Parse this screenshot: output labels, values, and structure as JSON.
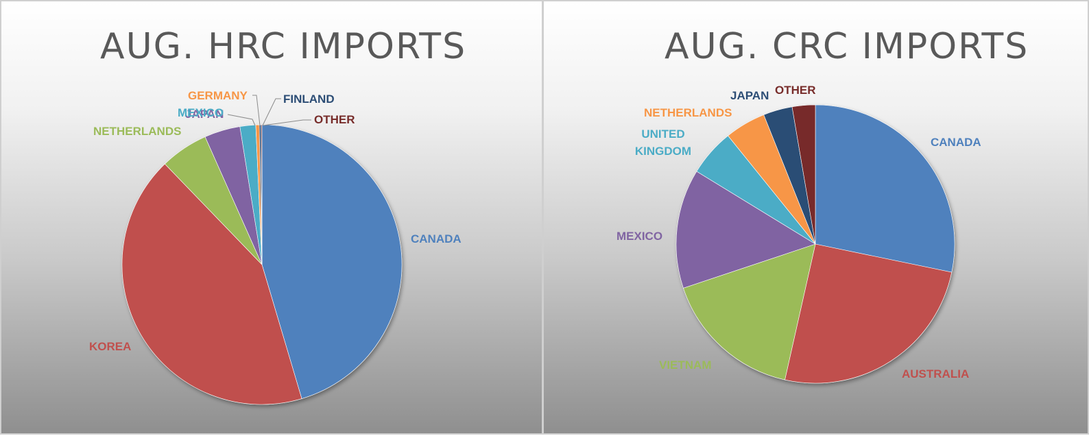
{
  "chart_data": [
    {
      "type": "pie",
      "title": "AUG. HRC IMPORTS",
      "slices": [
        {
          "label": "CANADA",
          "value": 45.0,
          "color": "#4F81BD"
        },
        {
          "label": "KOREA",
          "value": 42.0,
          "color": "#C0504D"
        },
        {
          "label": "NETHERLANDS",
          "value": 5.5,
          "color": "#9BBB59"
        },
        {
          "label": "JAPAN",
          "value": 4.1,
          "color": "#8064A2"
        },
        {
          "label": "MEXICO",
          "value": 1.8,
          "color": "#4BACC6"
        },
        {
          "label": "GERMANY",
          "value": 0.4,
          "color": "#F79646"
        },
        {
          "label": "FINLAND",
          "value": 0.2,
          "color": "#2C4D75"
        },
        {
          "label": "OTHER",
          "value": 0.1,
          "color": "#772C2A"
        }
      ]
    },
    {
      "type": "pie",
      "title": "AUG. CRC IMPORTS",
      "slices": [
        {
          "label": "CANADA",
          "value": 28.5,
          "color": "#4F81BD"
        },
        {
          "label": "AUSTRALIA",
          "value": 25.5,
          "color": "#C0504D"
        },
        {
          "label": "VIETNAM",
          "value": 16.5,
          "color": "#9BBB59"
        },
        {
          "label": "MEXICO",
          "value": 14.0,
          "color": "#8064A2"
        },
        {
          "label": "UNITED KINGDOM",
          "value": 5.5,
          "color": "#4BACC6"
        },
        {
          "label": "NETHERLANDS",
          "value": 4.8,
          "color": "#F79646"
        },
        {
          "label": "JAPAN",
          "value": 3.4,
          "color": "#2C4D75"
        },
        {
          "label": "OTHER",
          "value": 2.7,
          "color": "#772C2A"
        }
      ]
    }
  ]
}
